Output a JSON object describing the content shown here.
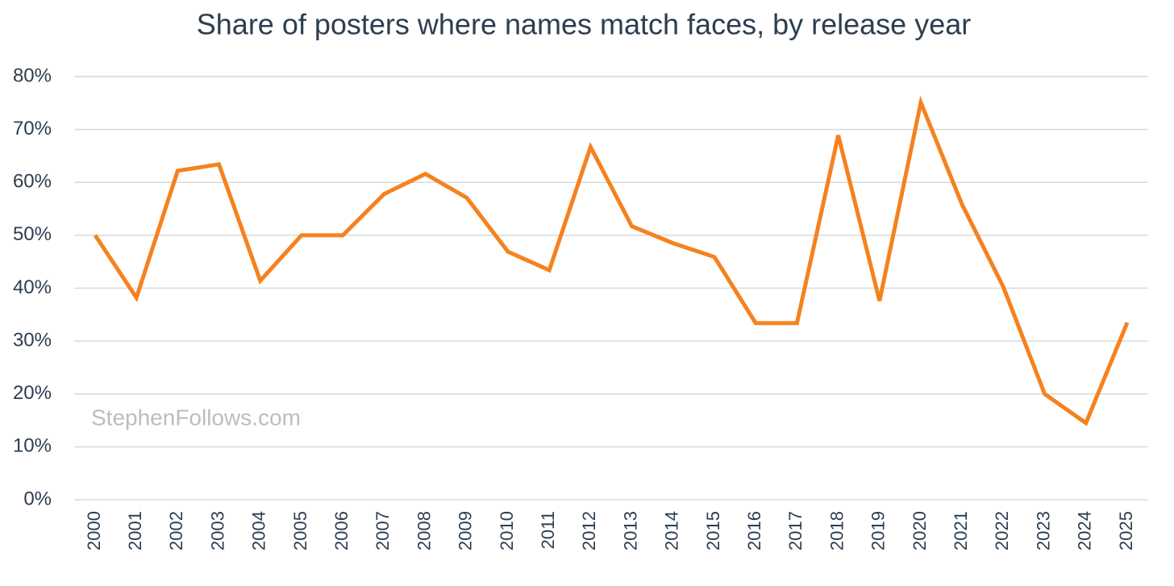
{
  "chart_data": {
    "type": "line",
    "title": "Share of posters where names match faces, by release year",
    "watermark": "StephenFollows.com",
    "categories": [
      "2000",
      "2001",
      "2002",
      "2003",
      "2004",
      "2005",
      "2006",
      "2007",
      "2008",
      "2009",
      "2010",
      "2011",
      "2012",
      "2013",
      "2014",
      "2015",
      "2016",
      "2017",
      "2018",
      "2019",
      "2020",
      "2021",
      "2022",
      "2023",
      "2024",
      "2025"
    ],
    "values": [
      50,
      38.2,
      62.2,
      63.4,
      41.4,
      50,
      50,
      57.8,
      61.6,
      57.1,
      46.9,
      43.4,
      66.7,
      51.7,
      48.5,
      45.9,
      33.4,
      33.4,
      68.9,
      37.6,
      75.1,
      55.8,
      40.2,
      20,
      14.5,
      33.5
    ],
    "color": "#f5821f",
    "ylim": [
      0,
      80
    ],
    "yticks": [
      {
        "value": 0,
        "label": "0%"
      },
      {
        "value": 10,
        "label": "10%"
      },
      {
        "value": 20,
        "label": "20%"
      },
      {
        "value": 30,
        "label": "30%"
      },
      {
        "value": 40,
        "label": "40%"
      },
      {
        "value": 50,
        "label": "50%"
      },
      {
        "value": 60,
        "label": "60%"
      },
      {
        "value": 70,
        "label": "70%"
      },
      {
        "value": 80,
        "label": "80%"
      }
    ],
    "grid": true
  }
}
